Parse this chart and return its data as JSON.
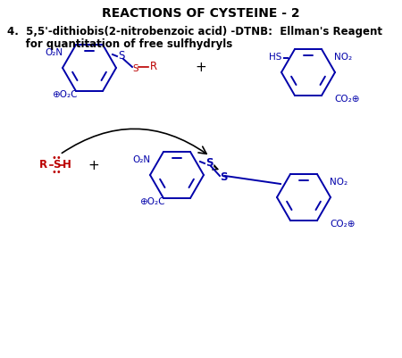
{
  "title": "REACTIONS OF CYSTEINE - 2",
  "title_fontsize": 10,
  "bg_color": "#ffffff",
  "text_color_black": "#000000",
  "text_color_blue": "#0000aa",
  "text_color_red": "#bb0000",
  "label_4": "4.  5,5'-dithiobis(2-nitrobenzoic acid) -DTNB:  Ellman's Reagent",
  "label_4b": "     for quantitation of free sulfhydryls",
  "figsize": [
    4.5,
    4.01
  ],
  "dpi": 100
}
